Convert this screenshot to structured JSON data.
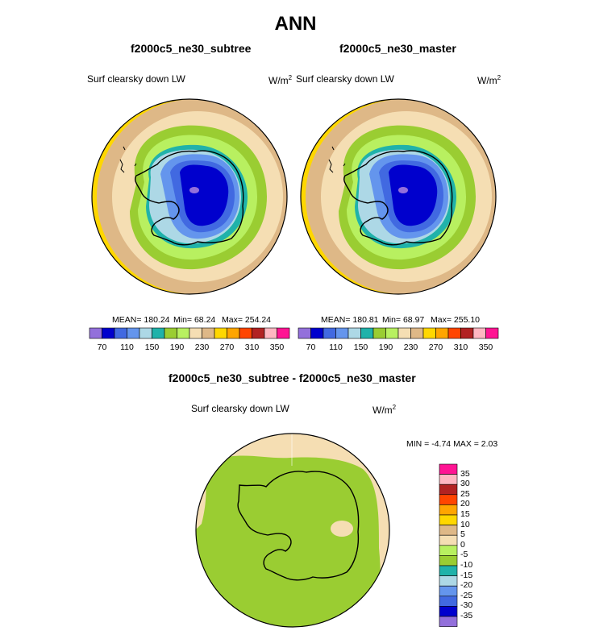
{
  "title": "ANN",
  "panels": [
    {
      "case": "f2000c5_ne30_subtree",
      "variable": "Surf clearsky down LW",
      "units": "W/m",
      "units_sup": "2",
      "mean_text": "MEAN= 180.24",
      "min_text": "Min=  68.24",
      "max_text": "Max= 254.24"
    },
    {
      "case": "f2000c5_ne30_master",
      "variable": "Surf clearsky down LW",
      "units": "W/m",
      "units_sup": "2",
      "mean_text": "MEAN= 180.81",
      "min_text": "Min=  68.97",
      "max_text": "Max= 255.10"
    }
  ],
  "diff_panel": {
    "title": "f2000c5_ne30_subtree - f2000c5_ne30_master",
    "variable": "Surf clearsky down LW",
    "units": "W/m",
    "units_sup": "2",
    "minmax_text": "MIN =  -4.74 MAX =   2.03"
  },
  "abs_colorbar": {
    "colors": [
      "#9370db",
      "#0000cd",
      "#4169e1",
      "#6495ed",
      "#add8e6",
      "#20b2aa",
      "#9acd32",
      "#b8f060",
      "#f5deb3",
      "#deb887",
      "#ffd700",
      "#ffa500",
      "#ff4500",
      "#b22222",
      "#ffb6c1",
      "#ff1493"
    ],
    "labels": [
      "70",
      "110",
      "150",
      "190",
      "230",
      "270",
      "310",
      "350"
    ]
  },
  "diff_colorbar": {
    "colors": [
      "#9370db",
      "#0000cd",
      "#4169e1",
      "#6495ed",
      "#add8e6",
      "#20b2aa",
      "#9acd32",
      "#b8f060",
      "#f5deb3",
      "#deb887",
      "#ffd700",
      "#ffa500",
      "#ff4500",
      "#b22222",
      "#ffb6c1",
      "#ff1493"
    ],
    "labels": [
      "-35",
      "-30",
      "-25",
      "-20",
      "-15",
      "-10",
      "-5",
      "0",
      "5",
      "10",
      "15",
      "20",
      "25",
      "30",
      "35"
    ]
  }
}
